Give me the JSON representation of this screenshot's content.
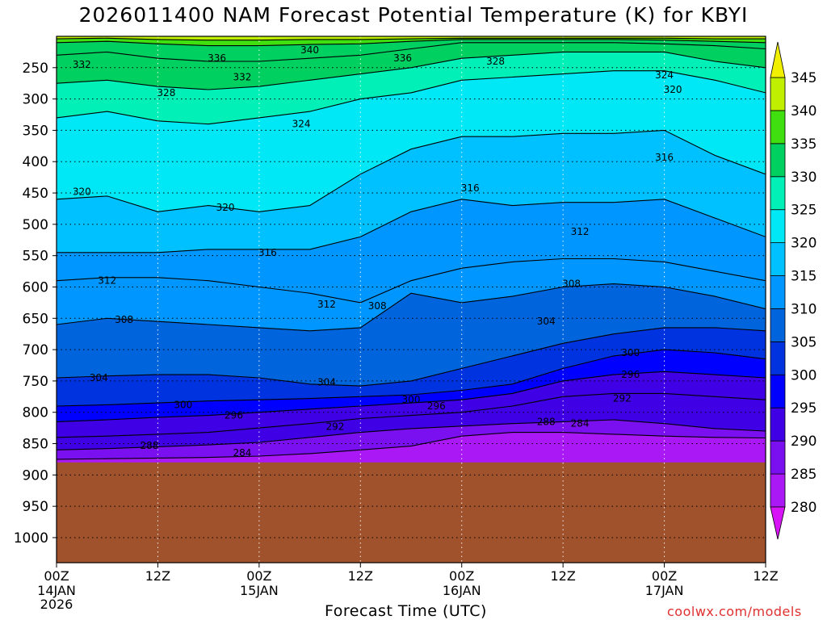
{
  "title": "2026011400 NAM Forecast Potential Temperature (K) for KBYI",
  "xlabel": "Forecast Time (UTC)",
  "credit": "coolwx.com/models",
  "colorbar": {
    "levels": [
      280,
      285,
      290,
      295,
      300,
      305,
      310,
      315,
      320,
      325,
      330,
      335,
      340,
      345
    ],
    "colors": [
      "#d614f5",
      "#a918f5",
      "#7a10f0",
      "#3f00e6",
      "#0000ff",
      "#0033e0",
      "#0064dc",
      "#0096ff",
      "#00c1ff",
      "#00e8f5",
      "#00f0b8",
      "#00d060",
      "#40e010",
      "#c0f000",
      "#f0f000"
    ]
  },
  "ground_color": "#a0522d",
  "chart_data": {
    "type": "contour",
    "title": "2026011400 NAM Forecast Potential Temperature (K) for KBYI",
    "xlabel": "Forecast Time (UTC)",
    "ylabel": "",
    "x_hours": [
      0,
      6,
      12,
      18,
      24,
      30,
      36,
      42,
      48,
      54,
      60,
      66,
      72,
      78,
      84
    ],
    "x_ticks": [
      {
        "hour": 0,
        "label": "00Z",
        "date": "14JAN",
        "year": "2026"
      },
      {
        "hour": 12,
        "label": "12Z",
        "date": "",
        "year": ""
      },
      {
        "hour": 24,
        "label": "00Z",
        "date": "15JAN",
        "year": ""
      },
      {
        "hour": 36,
        "label": "12Z",
        "date": "",
        "year": ""
      },
      {
        "hour": 48,
        "label": "00Z",
        "date": "16JAN",
        "year": ""
      },
      {
        "hour": 60,
        "label": "12Z",
        "date": "",
        "year": ""
      },
      {
        "hour": 72,
        "label": "00Z",
        "date": "17JAN",
        "year": ""
      },
      {
        "hour": 84,
        "label": "12Z",
        "date": "",
        "year": ""
      }
    ],
    "y_ticks": [
      250,
      300,
      350,
      400,
      450,
      500,
      550,
      600,
      650,
      700,
      750,
      800,
      850,
      900,
      950,
      1000
    ],
    "ylim": [
      200,
      1040
    ],
    "surface_pressure_hPa": 880,
    "isentropes": [
      {
        "theta": 284,
        "p": [
          875,
          874,
          873,
          872,
          870,
          866,
          860,
          854,
          838,
          832,
          832,
          835,
          838,
          840,
          841
        ]
      },
      {
        "theta": 288,
        "p": [
          860,
          858,
          855,
          852,
          848,
          840,
          832,
          826,
          822,
          818,
          815,
          812,
          818,
          826,
          830
        ]
      },
      {
        "theta": 292,
        "p": [
          840,
          838,
          835,
          832,
          825,
          818,
          810,
          805,
          800,
          790,
          775,
          770,
          770,
          775,
          780
        ]
      },
      {
        "theta": 296,
        "p": [
          815,
          812,
          808,
          805,
          800,
          795,
          790,
          785,
          780,
          770,
          750,
          740,
          735,
          740,
          745
        ]
      },
      {
        "theta": 300,
        "p": [
          790,
          788,
          785,
          782,
          780,
          778,
          775,
          772,
          765,
          755,
          730,
          710,
          700,
          705,
          715
        ]
      },
      {
        "theta": 304,
        "p": [
          745,
          742,
          740,
          740,
          745,
          755,
          758,
          750,
          730,
          710,
          690,
          675,
          665,
          665,
          670
        ]
      },
      {
        "theta": 308,
        "p": [
          660,
          650,
          655,
          660,
          665,
          670,
          665,
          610,
          625,
          615,
          600,
          595,
          600,
          615,
          635
        ]
      },
      {
        "theta": 312,
        "p": [
          590,
          585,
          585,
          590,
          600,
          610,
          625,
          590,
          570,
          560,
          555,
          555,
          560,
          575,
          590
        ]
      },
      {
        "theta": 316,
        "p": [
          545,
          545,
          545,
          540,
          540,
          540,
          520,
          480,
          460,
          470,
          465,
          465,
          460,
          490,
          520
        ]
      },
      {
        "theta": 320,
        "p": [
          460,
          455,
          480,
          470,
          480,
          470,
          420,
          380,
          360,
          360,
          355,
          355,
          350,
          390,
          420
        ]
      },
      {
        "theta": 324,
        "p": [
          330,
          320,
          335,
          340,
          330,
          320,
          300,
          290,
          270,
          265,
          260,
          255,
          255,
          270,
          290
        ]
      },
      {
        "theta": 328,
        "p": [
          275,
          270,
          280,
          285,
          280,
          270,
          260,
          250,
          235,
          230,
          225,
          225,
          225,
          240,
          250
        ]
      },
      {
        "theta": 332,
        "p": [
          230,
          225,
          235,
          240,
          240,
          235,
          230,
          220,
          210,
          210,
          210,
          210,
          212,
          215,
          220
        ]
      },
      {
        "theta": 336,
        "p": [
          210,
          208,
          212,
          215,
          215,
          213,
          212,
          208,
          205,
          205,
          205,
          205,
          206,
          208,
          210
        ]
      },
      {
        "theta": 340,
        "p": [
          204,
          203,
          205,
          206,
          206,
          205,
          205,
          204,
          203,
          203,
          203,
          203,
          203,
          204,
          204
        ]
      }
    ],
    "labels": [
      {
        "text": "340",
        "hour": 30,
        "p": 222
      },
      {
        "text": "336",
        "hour": 19,
        "p": 235
      },
      {
        "text": "336",
        "hour": 41,
        "p": 235
      },
      {
        "text": "332",
        "hour": 3,
        "p": 245
      },
      {
        "text": "332",
        "hour": 22,
        "p": 265
      },
      {
        "text": "328",
        "hour": 13,
        "p": 290
      },
      {
        "text": "328",
        "hour": 52,
        "p": 240
      },
      {
        "text": "324",
        "hour": 72,
        "p": 262
      },
      {
        "text": "324",
        "hour": 29,
        "p": 340
      },
      {
        "text": "320",
        "hour": 73,
        "p": 285
      },
      {
        "text": "320",
        "hour": 3,
        "p": 448
      },
      {
        "text": "320",
        "hour": 20,
        "p": 473
      },
      {
        "text": "316",
        "hour": 72,
        "p": 393
      },
      {
        "text": "316",
        "hour": 49,
        "p": 442
      },
      {
        "text": "316",
        "hour": 25,
        "p": 545
      },
      {
        "text": "312",
        "hour": 6,
        "p": 590
      },
      {
        "text": "312",
        "hour": 32,
        "p": 628
      },
      {
        "text": "312",
        "hour": 62,
        "p": 512
      },
      {
        "text": "308",
        "hour": 8,
        "p": 652
      },
      {
        "text": "308",
        "hour": 38,
        "p": 630
      },
      {
        "text": "308",
        "hour": 61,
        "p": 595
      },
      {
        "text": "304",
        "hour": 5,
        "p": 745
      },
      {
        "text": "304",
        "hour": 32,
        "p": 752
      },
      {
        "text": "304",
        "hour": 58,
        "p": 655
      },
      {
        "text": "300",
        "hour": 15,
        "p": 788
      },
      {
        "text": "300",
        "hour": 42,
        "p": 780
      },
      {
        "text": "300",
        "hour": 68,
        "p": 705
      },
      {
        "text": "296",
        "hour": 21,
        "p": 805
      },
      {
        "text": "296",
        "hour": 45,
        "p": 790
      },
      {
        "text": "296",
        "hour": 68,
        "p": 740
      },
      {
        "text": "292",
        "hour": 33,
        "p": 823
      },
      {
        "text": "292",
        "hour": 67,
        "p": 778
      },
      {
        "text": "288",
        "hour": 11,
        "p": 853
      },
      {
        "text": "288",
        "hour": 58,
        "p": 815
      },
      {
        "text": "284",
        "hour": 22,
        "p": 865
      },
      {
        "text": "284",
        "hour": 62,
        "p": 818
      }
    ]
  }
}
